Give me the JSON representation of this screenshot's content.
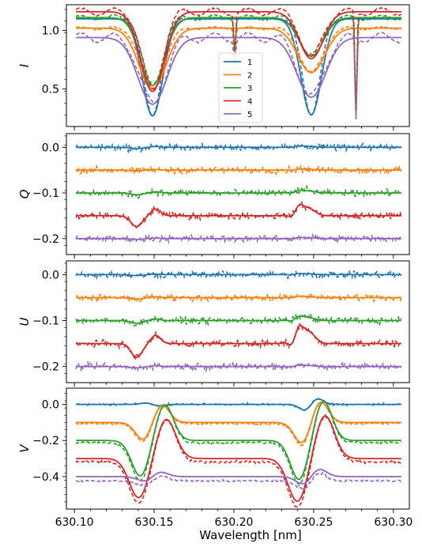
{
  "figure": {
    "xlabel": "Wavelength [nm]",
    "xticks": [
      "630.10",
      "630.15",
      "630.20",
      "630.25",
      "630.30"
    ]
  },
  "chart_data": [
    {
      "type": "line",
      "ylabel": "I",
      "xlim": [
        630.095,
        630.31
      ],
      "ylim": [
        0.18,
        1.22
      ],
      "yticks": [
        0.5,
        1.0
      ],
      "ytick_labels": [
        "0.5",
        "1.0"
      ],
      "legend": {
        "placement": "center",
        "entries": [
          "1",
          "2",
          "3",
          "4",
          "5"
        ]
      },
      "series": [
        {
          "name": "1",
          "color": "#1f77b4",
          "continuum": 1.1,
          "depth1": 0.83,
          "depth2": 0.82,
          "width1": 0.0065,
          "width2": 0.0065,
          "blends": [
            {
              "x": 630.2005,
              "d": 0.28,
              "w": 0.0006
            },
            {
              "x": 630.2765,
              "d": 0.85,
              "w": 0.0006
            }
          ]
        },
        {
          "name": "2",
          "color": "#ff7f0e",
          "continuum": 1.02,
          "depth1": 0.52,
          "depth2": 0.38,
          "width1": 0.0085,
          "width2": 0.0085,
          "blends": [
            {
              "x": 630.2005,
              "d": 0.25,
              "w": 0.0006
            },
            {
              "x": 630.2765,
              "d": 0.78,
              "w": 0.0006
            }
          ]
        },
        {
          "name": "3",
          "color": "#2ca02c",
          "continuum": 1.11,
          "depth1": 0.58,
          "depth2": 0.33,
          "width1": 0.0075,
          "width2": 0.0075,
          "blends": [
            {
              "x": 630.2005,
              "d": 0.28,
              "w": 0.0006
            },
            {
              "x": 630.2765,
              "d": 0.8,
              "w": 0.0006
            }
          ]
        },
        {
          "name": "4",
          "color": "#d62728",
          "continuum": 1.16,
          "depth1": 0.68,
          "depth2": 0.4,
          "width1": 0.0075,
          "width2": 0.0075,
          "blends": [
            {
              "x": 630.2005,
              "d": 0.3,
              "w": 0.0006
            },
            {
              "x": 630.2765,
              "d": 0.85,
              "w": 0.0006
            }
          ]
        },
        {
          "name": "5",
          "color": "#9467bd",
          "continuum": 0.94,
          "depth1": 0.57,
          "depth2": 0.51,
          "width1": 0.009,
          "width2": 0.009,
          "blends": [
            {
              "x": 630.2005,
              "d": 0.2,
              "w": 0.0006
            },
            {
              "x": 630.2765,
              "d": 0.7,
              "w": 0.0006
            }
          ]
        }
      ]
    },
    {
      "type": "line",
      "ylabel": "Q",
      "xlim": [
        630.095,
        630.31
      ],
      "ylim": [
        -0.235,
        0.03
      ],
      "yticks": [
        0.0,
        -0.1,
        -0.2
      ],
      "ytick_labels": [
        "0.0",
        "−0.1",
        "−0.2"
      ],
      "series": [
        {
          "name": "1",
          "color": "#1f77b4",
          "offset": 0.0,
          "a1": 0.003,
          "a2": 0.004,
          "noise": 0.006
        },
        {
          "name": "2",
          "color": "#ff7f0e",
          "offset": -0.05,
          "a1": 0.002,
          "a2": 0.003,
          "noise": 0.006
        },
        {
          "name": "3",
          "color": "#2ca02c",
          "offset": -0.1,
          "a1": 0.004,
          "a2": 0.008,
          "noise": 0.006
        },
        {
          "name": "4",
          "color": "#d62728",
          "offset": -0.15,
          "a1": 0.024,
          "a2": 0.03,
          "noise": 0.006
        },
        {
          "name": "5",
          "color": "#9467bd",
          "offset": -0.2,
          "a1": 0.002,
          "a2": 0.003,
          "noise": 0.006
        }
      ]
    },
    {
      "type": "line",
      "ylabel": "U",
      "xlim": [
        630.095,
        630.31
      ],
      "ylim": [
        -0.235,
        0.03
      ],
      "yticks": [
        0.0,
        -0.1,
        -0.2
      ],
      "ytick_labels": [
        "0.0",
        "−0.1",
        "−0.2"
      ],
      "series": [
        {
          "name": "1",
          "color": "#1f77b4",
          "offset": 0.0,
          "a1": 0.002,
          "a2": 0.003,
          "noise": 0.006
        },
        {
          "name": "2",
          "color": "#ff7f0e",
          "offset": -0.05,
          "a1": 0.003,
          "a2": 0.004,
          "noise": 0.006
        },
        {
          "name": "3",
          "color": "#2ca02c",
          "offset": -0.1,
          "a1": 0.006,
          "a2": 0.012,
          "noise": 0.006
        },
        {
          "name": "4",
          "color": "#d62728",
          "offset": -0.15,
          "a1": 0.03,
          "a2": 0.048,
          "noise": 0.006
        },
        {
          "name": "5",
          "color": "#9467bd",
          "offset": -0.2,
          "a1": 0.003,
          "a2": 0.004,
          "noise": 0.006
        }
      ]
    },
    {
      "type": "line",
      "ylabel": "V",
      "xlim": [
        630.095,
        630.31
      ],
      "ylim": [
        -0.58,
        0.09
      ],
      "yticks": [
        0.0,
        -0.2,
        -0.4
      ],
      "ytick_labels": [
        "0.0",
        "−0.2",
        "−0.4"
      ],
      "series": [
        {
          "name": "1",
          "color": "#1f77b4",
          "offset": 0.0,
          "amp1": -0.01,
          "amp2": 0.04,
          "width": 0.004,
          "split": 0.003,
          "noise": 0.005
        },
        {
          "name": "2",
          "color": "#ff7f0e",
          "offset": -0.1,
          "amp1": 0.1,
          "amp2": 0.12,
          "width": 0.005,
          "split": 0.0055,
          "noise": 0.005
        },
        {
          "name": "3",
          "color": "#2ca02c",
          "offset": -0.2,
          "amp1": 0.2,
          "amp2": 0.22,
          "width": 0.0055,
          "split": 0.0075,
          "noise": 0.006
        },
        {
          "name": "4",
          "color": "#d62728",
          "offset": -0.3,
          "amp1": 0.22,
          "amp2": 0.24,
          "width": 0.006,
          "split": 0.0085,
          "noise": 0.006
        },
        {
          "name": "5",
          "color": "#9467bd",
          "offset": -0.4,
          "amp1": 0.03,
          "amp2": 0.05,
          "width": 0.005,
          "split": 0.004,
          "noise": 0.005
        }
      ]
    }
  ]
}
